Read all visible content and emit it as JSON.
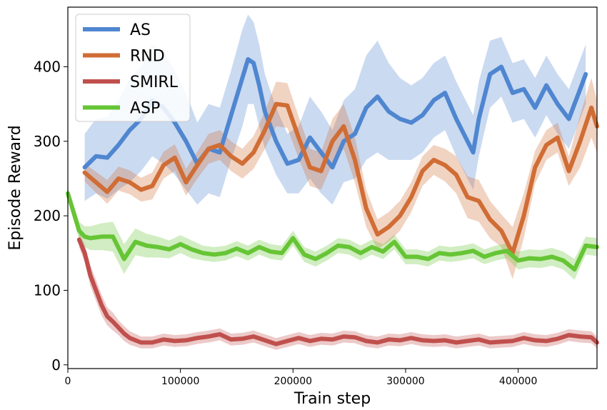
{
  "chart_data": {
    "type": "line",
    "xlabel": "Train step",
    "ylabel": "Episode Reward",
    "xlim": [
      0,
      470000
    ],
    "ylim": [
      -5,
      480
    ],
    "xticks": [
      0,
      100000,
      200000,
      300000,
      400000
    ],
    "yticks": [
      0,
      100,
      200,
      300,
      400
    ],
    "grid": false,
    "legend_position": "top-left",
    "series": [
      {
        "name": "AS",
        "color": "#4f86d0",
        "x": [
          15000,
          25000,
          35000,
          45000,
          55000,
          65000,
          75000,
          85000,
          95000,
          105000,
          115000,
          125000,
          135000,
          145000,
          155000,
          160000,
          165000,
          170000,
          175000,
          185000,
          195000,
          205000,
          215000,
          225000,
          235000,
          245000,
          255000,
          265000,
          275000,
          285000,
          295000,
          305000,
          315000,
          325000,
          335000,
          345000,
          355000,
          360000,
          365000,
          375000,
          385000,
          395000,
          405000,
          415000,
          425000,
          435000,
          445000,
          455000,
          460000
        ],
        "y": [
          265,
          280,
          278,
          295,
          315,
          330,
          355,
          345,
          325,
          300,
          270,
          290,
          285,
          335,
          385,
          410,
          405,
          375,
          340,
          300,
          270,
          275,
          305,
          285,
          265,
          300,
          310,
          345,
          360,
          340,
          330,
          325,
          335,
          355,
          365,
          330,
          300,
          285,
          330,
          390,
          400,
          365,
          370,
          345,
          375,
          350,
          330,
          370,
          390
        ],
        "band": [
          45,
          50,
          55,
          60,
          70,
          70,
          75,
          75,
          70,
          65,
          55,
          60,
          60,
          60,
          65,
          60,
          55,
          55,
          50,
          45,
          40,
          45,
          55,
          55,
          50,
          55,
          60,
          70,
          75,
          65,
          55,
          50,
          50,
          50,
          50,
          50,
          50,
          50,
          50,
          45,
          40,
          40,
          40,
          40,
          40,
          40,
          40,
          40,
          40
        ]
      },
      {
        "name": "RND",
        "color": "#d06d35",
        "x": [
          15000,
          25000,
          35000,
          45000,
          55000,
          65000,
          75000,
          85000,
          95000,
          105000,
          115000,
          125000,
          135000,
          145000,
          155000,
          165000,
          175000,
          185000,
          195000,
          205000,
          215000,
          225000,
          235000,
          245000,
          255000,
          265000,
          275000,
          285000,
          295000,
          305000,
          315000,
          325000,
          335000,
          345000,
          355000,
          365000,
          375000,
          385000,
          395000,
          405000,
          415000,
          425000,
          435000,
          445000,
          455000,
          465000,
          470000
        ],
        "y": [
          258,
          245,
          232,
          250,
          245,
          235,
          240,
          268,
          278,
          245,
          268,
          290,
          295,
          280,
          270,
          285,
          315,
          350,
          348,
          305,
          265,
          260,
          300,
          320,
          275,
          210,
          175,
          185,
          200,
          225,
          260,
          275,
          268,
          255,
          225,
          220,
          195,
          180,
          150,
          200,
          265,
          295,
          305,
          260,
          300,
          345,
          320
        ],
        "band": [
          12,
          14,
          16,
          16,
          16,
          16,
          18,
          18,
          18,
          18,
          18,
          20,
          20,
          20,
          20,
          22,
          25,
          30,
          30,
          28,
          25,
          25,
          30,
          30,
          30,
          25,
          20,
          20,
          20,
          20,
          20,
          20,
          22,
          25,
          28,
          28,
          25,
          22,
          35,
          30,
          22,
          20,
          20,
          20,
          35,
          40,
          35
        ]
      },
      {
        "name": "SMIRL",
        "color": "#c0504d",
        "x": [
          10000,
          15000,
          20000,
          25000,
          30000,
          35000,
          40000,
          45000,
          50000,
          55000,
          65000,
          75000,
          85000,
          95000,
          105000,
          115000,
          125000,
          135000,
          145000,
          155000,
          165000,
          175000,
          185000,
          195000,
          205000,
          215000,
          225000,
          235000,
          245000,
          255000,
          265000,
          275000,
          285000,
          295000,
          305000,
          315000,
          325000,
          335000,
          345000,
          355000,
          365000,
          375000,
          385000,
          395000,
          405000,
          415000,
          425000,
          435000,
          445000,
          455000,
          465000,
          470000
        ],
        "y": [
          168,
          150,
          120,
          100,
          80,
          65,
          58,
          50,
          42,
          36,
          30,
          30,
          34,
          32,
          33,
          36,
          38,
          41,
          34,
          35,
          38,
          33,
          28,
          32,
          36,
          32,
          35,
          34,
          38,
          37,
          32,
          30,
          34,
          33,
          36,
          33,
          32,
          33,
          30,
          32,
          34,
          30,
          31,
          32,
          36,
          33,
          32,
          35,
          40,
          38,
          37,
          30
        ],
        "band": [
          10,
          12,
          14,
          14,
          14,
          12,
          12,
          10,
          10,
          9,
          8,
          8,
          8,
          8,
          8,
          8,
          8,
          8,
          8,
          8,
          8,
          8,
          8,
          8,
          8,
          8,
          8,
          8,
          8,
          8,
          8,
          8,
          8,
          8,
          8,
          8,
          8,
          8,
          8,
          8,
          8,
          8,
          8,
          8,
          8,
          8,
          8,
          8,
          8,
          8,
          8,
          8
        ]
      },
      {
        "name": "ASP",
        "color": "#66c535",
        "x": [
          0,
          5000,
          10000,
          15000,
          20000,
          30000,
          40000,
          50000,
          60000,
          70000,
          80000,
          90000,
          100000,
          110000,
          120000,
          130000,
          140000,
          150000,
          160000,
          170000,
          180000,
          190000,
          200000,
          210000,
          220000,
          230000,
          240000,
          250000,
          260000,
          270000,
          280000,
          290000,
          300000,
          310000,
          320000,
          330000,
          340000,
          350000,
          360000,
          370000,
          380000,
          390000,
          400000,
          410000,
          420000,
          430000,
          440000,
          450000,
          460000,
          470000
        ],
        "y": [
          230,
          205,
          180,
          172,
          170,
          172,
          172,
          142,
          165,
          160,
          158,
          155,
          162,
          155,
          150,
          148,
          150,
          156,
          150,
          158,
          152,
          150,
          170,
          148,
          142,
          150,
          160,
          158,
          150,
          158,
          152,
          165,
          145,
          145,
          142,
          150,
          148,
          150,
          153,
          145,
          150,
          153,
          140,
          143,
          142,
          145,
          140,
          128,
          160,
          158
        ],
        "band": [
          8,
          10,
          12,
          14,
          16,
          18,
          20,
          20,
          18,
          16,
          14,
          12,
          12,
          12,
          10,
          10,
          10,
          10,
          10,
          10,
          10,
          10,
          10,
          10,
          10,
          10,
          10,
          10,
          10,
          10,
          10,
          10,
          10,
          10,
          10,
          10,
          10,
          10,
          10,
          10,
          10,
          10,
          12,
          12,
          12,
          12,
          12,
          14,
          12,
          12
        ]
      }
    ]
  }
}
